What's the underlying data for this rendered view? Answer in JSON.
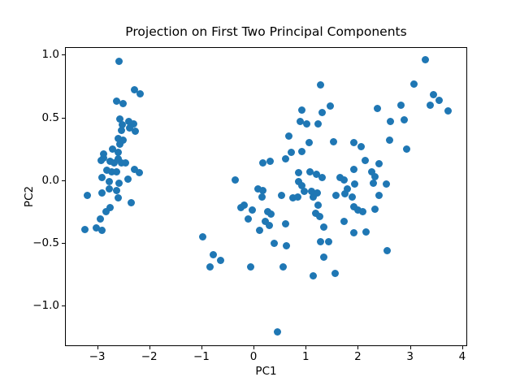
{
  "chart_data": {
    "type": "scatter",
    "title": "Projection on First Two Principal Components",
    "xlabel": "PC1",
    "ylabel": "PC2",
    "xlim": [
      -3.6,
      4.08
    ],
    "ylim": [
      -1.315,
      1.055
    ],
    "xticks": [
      -3,
      -2,
      -1,
      0,
      1,
      2,
      3,
      4
    ],
    "xtick_labels": [
      "−3",
      "−2",
      "−1",
      "0",
      "1",
      "2",
      "3",
      "4"
    ],
    "yticks": [
      -1.0,
      -0.5,
      0.0,
      0.5,
      1.0
    ],
    "ytick_labels": [
      "−1.0",
      "−0.5",
      "0.0",
      "0.5",
      "1.0"
    ],
    "grid": false,
    "legend": null,
    "marker_color": "#1f77b4",
    "marker_diameter_px": 9,
    "points": [
      [
        -2.58,
        0.95
      ],
      [
        -2.29,
        0.72
      ],
      [
        -2.17,
        0.69
      ],
      [
        -2.62,
        0.63
      ],
      [
        -2.5,
        0.61
      ],
      [
        -2.56,
        0.49
      ],
      [
        -2.4,
        0.47
      ],
      [
        -2.3,
        0.45
      ],
      [
        -2.54,
        0.4
      ],
      [
        -2.37,
        0.42
      ],
      [
        -2.27,
        0.39
      ],
      [
        -2.6,
        0.33
      ],
      [
        -2.5,
        0.32
      ],
      [
        -2.57,
        0.29
      ],
      [
        -2.87,
        0.21
      ],
      [
        -2.7,
        0.25
      ],
      [
        -2.6,
        0.22
      ],
      [
        -2.88,
        0.18
      ],
      [
        -2.75,
        0.15
      ],
      [
        -2.67,
        0.14
      ],
      [
        -2.59,
        0.17
      ],
      [
        -2.53,
        0.14
      ],
      [
        -2.81,
        0.08
      ],
      [
        -2.72,
        0.07
      ],
      [
        -2.62,
        0.07
      ],
      [
        -2.9,
        0.02
      ],
      [
        -2.77,
        -0.01
      ],
      [
        -2.58,
        -0.02
      ],
      [
        -2.41,
        0.01
      ],
      [
        -2.29,
        0.09
      ],
      [
        -2.19,
        0.06
      ],
      [
        -2.93,
        0.16
      ],
      [
        -3.19,
        -0.12
      ],
      [
        -2.9,
        -0.1
      ],
      [
        -2.77,
        -0.07
      ],
      [
        -2.62,
        -0.08
      ],
      [
        -2.59,
        -0.14
      ],
      [
        -2.34,
        -0.18
      ],
      [
        -2.83,
        -0.25
      ],
      [
        -2.75,
        -0.22
      ],
      [
        -2.94,
        -0.31
      ],
      [
        -3.02,
        -0.38
      ],
      [
        -2.91,
        -0.4
      ],
      [
        -3.24,
        -0.39
      ],
      [
        -2.46,
        0.14
      ],
      [
        -2.52,
        0.44
      ],
      [
        1.28,
        0.76
      ],
      [
        0.92,
        0.56
      ],
      [
        1.32,
        0.54
      ],
      [
        0.9,
        0.47
      ],
      [
        1.02,
        0.45
      ],
      [
        1.23,
        0.45
      ],
      [
        0.68,
        0.35
      ],
      [
        1.06,
        0.3
      ],
      [
        0.73,
        0.22
      ],
      [
        0.93,
        0.23
      ],
      [
        0.62,
        0.17
      ],
      [
        0.18,
        0.14
      ],
      [
        0.32,
        0.15
      ],
      [
        -0.35,
        0.0
      ],
      [
        0.87,
        0.06
      ],
      [
        1.08,
        0.07
      ],
      [
        1.2,
        0.05
      ],
      [
        1.32,
        0.02
      ],
      [
        0.87,
        -0.01
      ],
      [
        0.93,
        -0.04
      ],
      [
        0.97,
        -0.09
      ],
      [
        0.09,
        -0.07
      ],
      [
        0.17,
        -0.08
      ],
      [
        0.53,
        -0.12
      ],
      [
        0.76,
        -0.14
      ],
      [
        0.85,
        -0.13
      ],
      [
        1.15,
        -0.13
      ],
      [
        1.12,
        -0.09
      ],
      [
        1.22,
        -0.1
      ],
      [
        3.29,
        0.96
      ],
      [
        3.07,
        0.77
      ],
      [
        3.45,
        0.68
      ],
      [
        3.39,
        0.6
      ],
      [
        3.56,
        0.64
      ],
      [
        2.82,
        0.6
      ],
      [
        2.38,
        0.57
      ],
      [
        3.73,
        0.55
      ],
      [
        1.47,
        0.59
      ],
      [
        2.62,
        0.47
      ],
      [
        2.89,
        0.48
      ],
      [
        2.61,
        0.32
      ],
      [
        1.54,
        0.31
      ],
      [
        1.92,
        0.3
      ],
      [
        2.06,
        0.27
      ],
      [
        2.94,
        0.25
      ],
      [
        2.14,
        0.16
      ],
      [
        2.4,
        0.13
      ],
      [
        1.92,
        0.09
      ],
      [
        2.27,
        0.07
      ],
      [
        1.65,
        0.02
      ],
      [
        1.73,
        0.0
      ],
      [
        2.32,
        0.03
      ],
      [
        2.3,
        -0.02
      ],
      [
        1.94,
        -0.03
      ],
      [
        2.54,
        -0.03
      ],
      [
        1.8,
        -0.07
      ],
      [
        1.75,
        -0.11
      ],
      [
        1.89,
        -0.13
      ],
      [
        2.4,
        -0.12
      ],
      [
        0.16,
        -0.13
      ],
      [
        1.24,
        -0.2
      ],
      [
        -0.25,
        -0.22
      ],
      [
        -0.18,
        -0.2
      ],
      [
        -0.03,
        -0.24
      ],
      [
        -0.11,
        -0.31
      ],
      [
        0.27,
        -0.25
      ],
      [
        0.34,
        -0.27
      ],
      [
        0.23,
        -0.33
      ],
      [
        0.3,
        -0.36
      ],
      [
        0.61,
        -0.35
      ],
      [
        0.11,
        -0.4
      ],
      [
        -0.97,
        -0.45
      ],
      [
        0.39,
        -0.5
      ],
      [
        0.63,
        -0.52
      ],
      [
        -0.77,
        -0.59
      ],
      [
        -0.63,
        -0.64
      ],
      [
        -0.84,
        -0.69
      ],
      [
        -0.06,
        -0.69
      ],
      [
        0.56,
        -0.69
      ],
      [
        1.15,
        -0.76
      ],
      [
        1.35,
        -0.61
      ],
      [
        1.28,
        -0.49
      ],
      [
        1.44,
        -0.49
      ],
      [
        1.35,
        -0.37
      ],
      [
        1.19,
        -0.26
      ],
      [
        1.27,
        -0.29
      ],
      [
        0.46,
        -1.21
      ],
      [
        1.58,
        -0.12
      ],
      [
        1.93,
        -0.21
      ],
      [
        2.0,
        -0.24
      ],
      [
        2.09,
        -0.25
      ],
      [
        2.32,
        -0.23
      ],
      [
        1.74,
        -0.33
      ],
      [
        1.92,
        -0.42
      ],
      [
        2.15,
        -0.41
      ],
      [
        2.56,
        -0.56
      ],
      [
        1.56,
        -0.74
      ]
    ]
  }
}
